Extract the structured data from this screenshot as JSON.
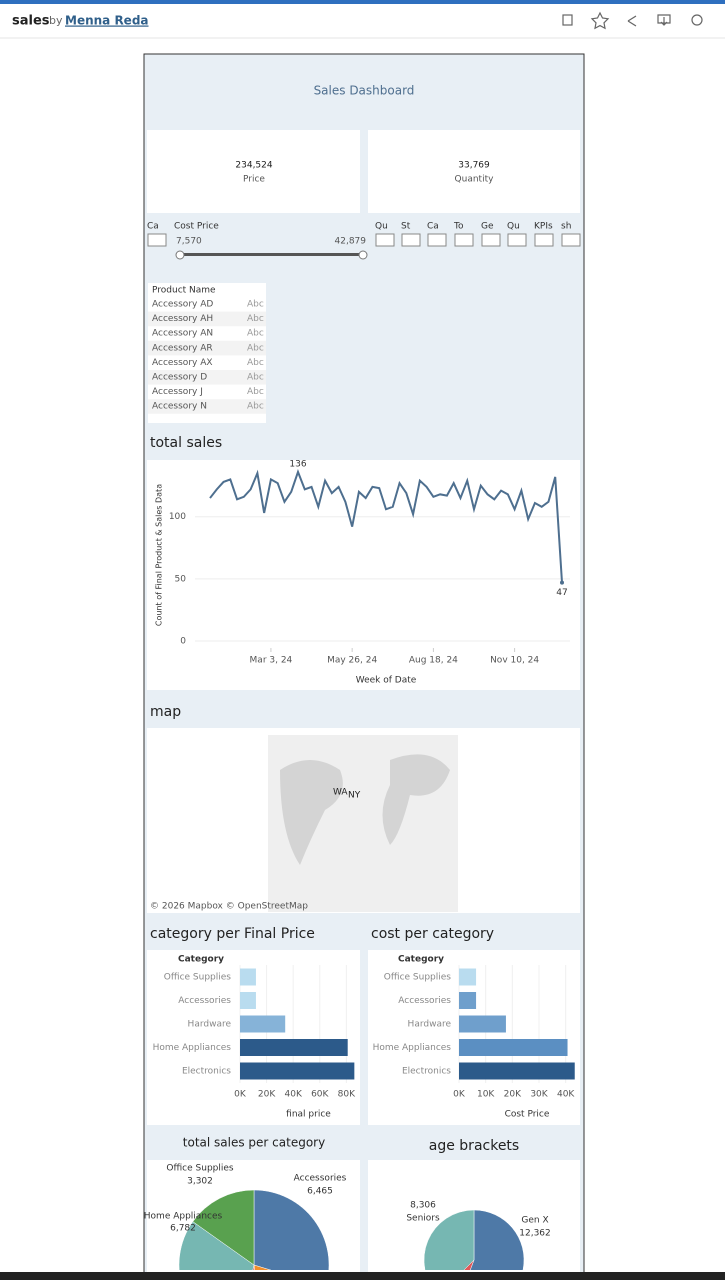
{
  "header": {
    "title": "sales",
    "by": "by",
    "author": "Menna Reda"
  },
  "dashboard": {
    "title": "Sales Dashboard",
    "kpis": [
      {
        "value": "234,524",
        "label": "Price"
      },
      {
        "value": "33,769",
        "label": "Quantity"
      }
    ],
    "filters": [
      "Ca",
      "Qu",
      "St",
      "Ca",
      "To",
      "Ge",
      "Qu",
      "KPIs",
      "sh"
    ],
    "cost_filter": {
      "label": "Cost Price",
      "min": "7,570",
      "max": "42,879"
    },
    "product_table": {
      "header": "Product Name",
      "rows": [
        [
          "Accessory AD",
          "Abc"
        ],
        [
          "Accessory AH",
          "Abc"
        ],
        [
          "Accessory AN",
          "Abc"
        ],
        [
          "Accessory AR",
          "Abc"
        ],
        [
          "Accessory AX",
          "Abc"
        ],
        [
          "Accessory D",
          "Abc"
        ],
        [
          "Accessory J",
          "Abc"
        ],
        [
          "Accessory N",
          "Abc"
        ]
      ]
    },
    "map": {
      "title": "map",
      "credit": "© 2026 Mapbox © OpenStreetMap",
      "labels": [
        "WA",
        "NY"
      ]
    }
  },
  "chart_data": [
    {
      "type": "line",
      "title": "total sales",
      "ylabel": "Count of Final Product & Sales Data",
      "xlabel": "Week of Date",
      "color": "#4e6f8f",
      "values": [
        115,
        122,
        128,
        130,
        114,
        116,
        122,
        135,
        103,
        130,
        127,
        112,
        120,
        136,
        122,
        124,
        108,
        129,
        119,
        124,
        112,
        92,
        120,
        115,
        124,
        123,
        106,
        108,
        127,
        119,
        102,
        129,
        124,
        116,
        118,
        117,
        127,
        115,
        129,
        106,
        125,
        118,
        114,
        121,
        118,
        106,
        121,
        98,
        111,
        108,
        112,
        132,
        47
      ],
      "ylim": [
        0,
        140
      ],
      "yticks": [
        0,
        50,
        100
      ],
      "xlim": [
        0,
        52
      ],
      "xticks": [
        {
          "value": 9,
          "label": "Mar 3, 24"
        },
        {
          "value": 21,
          "label": "May 26, 24"
        },
        {
          "value": 33,
          "label": "Aug 18, 24"
        },
        {
          "value": 45,
          "label": "Nov 10, 24"
        }
      ]
    },
    {
      "type": "hbar",
      "title": "category per Final Price",
      "category_label": "Category",
      "xlabel": "final price",
      "categories": [
        "Office Supplies",
        "Accessories",
        "Hardware",
        "Home Appliances",
        "Electronics"
      ],
      "values": [
        12000,
        12000,
        34000,
        81000,
        86000
      ],
      "colors": [
        "#b9dcef",
        "#b9dcef",
        "#86b3d8",
        "#2c5a8a",
        "#2c5a8a"
      ],
      "xlim": [
        0,
        88000
      ],
      "xticks": [
        {
          "value": 0,
          "label": "0K"
        },
        {
          "value": 20000,
          "label": "20K"
        },
        {
          "value": 40000,
          "label": "40K"
        },
        {
          "value": 60000,
          "label": "60K"
        },
        {
          "value": 80000,
          "label": "80K"
        }
      ]
    },
    {
      "type": "hbar",
      "title": "cost per category",
      "category_label": "Category",
      "xlabel": "Cost Price",
      "categories": [
        "Office Supplies",
        "Accessories",
        "Hardware",
        "Home Appliances",
        "Electronics"
      ],
      "values": [
        6400,
        6400,
        17600,
        40700,
        43400
      ],
      "colors": [
        "#b9dcef",
        "#6f9fcc",
        "#6f9fcc",
        "#5b8fc2",
        "#2c5a8a"
      ],
      "xlim": [
        0,
        43500
      ],
      "xticks": [
        {
          "value": 0,
          "label": "0K"
        },
        {
          "value": 10000,
          "label": "10K"
        },
        {
          "value": 20000,
          "label": "20K"
        },
        {
          "value": 30000,
          "label": "30K"
        },
        {
          "value": 40000,
          "label": "40K"
        }
      ]
    },
    {
      "type": "pie",
      "title": "total sales per category",
      "categories": [
        "Accessories",
        null,
        null,
        "Home Appliances",
        "Office Supplies"
      ],
      "values": [
        6465,
        4000,
        1200,
        6782,
        3302
      ],
      "value_labels": [
        "6,465",
        null,
        null,
        "6,782",
        "3,302"
      ],
      "colors": [
        "#4e79a7",
        "#f28e2b",
        "#e15759",
        "#76b7b2",
        "#59a14f"
      ]
    },
    {
      "type": "pie",
      "title": "age brackets",
      "categories": [
        "Gen X",
        null,
        "Seniors"
      ],
      "values": [
        12362,
        1500,
        8306
      ],
      "value_labels": [
        "12,362",
        null,
        "8,306"
      ],
      "colors": [
        "#4e79a7",
        "#e15759",
        "#76b7b2"
      ]
    }
  ]
}
